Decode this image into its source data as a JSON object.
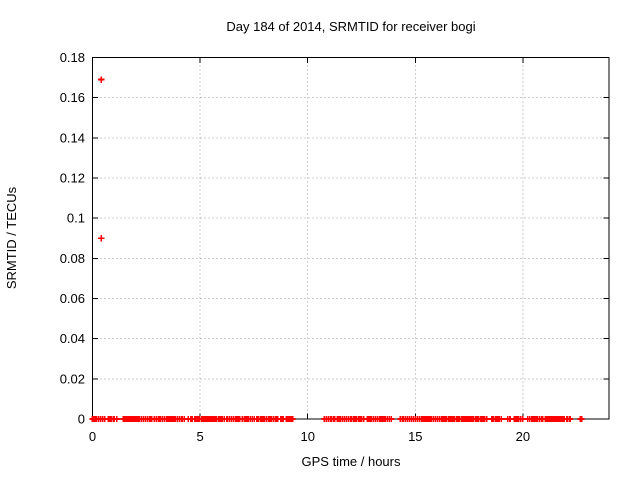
{
  "title": "Day 184 of 2014, SRMTID for receiver bogi",
  "chart_data": {
    "type": "scatter",
    "title": "Day 184 of 2014, SRMTID for receiver bogi",
    "xlabel": "GPS time / hours",
    "ylabel": "SRMTID / TECUs",
    "xlim": [
      0,
      24
    ],
    "ylim": [
      0,
      0.18
    ],
    "xticks": [
      0,
      5,
      10,
      15,
      20
    ],
    "xtick_labels": [
      "0",
      "5",
      "10",
      "15",
      "20"
    ],
    "yticks": [
      0,
      0.02,
      0.04,
      0.06,
      0.08,
      0.1,
      0.12,
      0.14,
      0.16,
      0.18
    ],
    "ytick_labels": [
      "0",
      "0.02",
      "0.04",
      "0.06",
      "0.08",
      "0.1",
      "0.12",
      "0.14",
      "0.16",
      "0.18"
    ],
    "grid": true,
    "grid_style": "dotted",
    "grid_color": "#9c9c9c",
    "border_color": "#000000",
    "marker": "plus",
    "marker_color": "#ff0000",
    "outlier_points": [
      {
        "x": 0.4,
        "y": 0.169
      },
      {
        "x": 0.4,
        "y": 0.09
      }
    ],
    "baseline_value": 0,
    "baseline_point_spacing_hours": 0.09,
    "baseline_segments": [
      [
        0.0,
        0.57
      ],
      [
        0.73,
        0.88
      ],
      [
        1.0,
        1.13
      ],
      [
        1.44,
        2.09
      ],
      [
        2.17,
        2.74
      ],
      [
        2.87,
        3.36
      ],
      [
        3.46,
        3.83
      ],
      [
        3.95,
        4.26
      ],
      [
        4.45,
        4.57
      ],
      [
        4.64,
        4.76
      ],
      [
        4.82,
        5.32
      ],
      [
        5.4,
        5.48
      ],
      [
        5.55,
        5.65
      ],
      [
        5.69,
        6.12
      ],
      [
        6.25,
        6.74
      ],
      [
        6.83,
        6.96
      ],
      [
        7.06,
        7.52
      ],
      [
        7.64,
        8.42
      ],
      [
        8.51,
        8.6
      ],
      [
        8.76,
        8.85
      ],
      [
        9.01,
        9.29
      ],
      [
        10.78,
        11.18
      ],
      [
        11.25,
        11.37
      ],
      [
        11.43,
        12.01
      ],
      [
        12.11,
        12.45
      ],
      [
        12.51,
        12.6
      ],
      [
        12.76,
        12.94
      ],
      [
        13.04,
        13.41
      ],
      [
        13.5,
        13.88
      ],
      [
        14.31,
        14.43
      ],
      [
        14.53,
        14.74
      ],
      [
        14.84,
        16.2
      ],
      [
        16.29,
        17.07
      ],
      [
        17.17,
        17.24
      ],
      [
        17.3,
        17.38
      ],
      [
        17.44,
        17.5
      ],
      [
        17.56,
        17.62
      ],
      [
        17.69,
        17.78
      ],
      [
        17.87,
        18.12
      ],
      [
        18.19,
        18.31
      ],
      [
        18.56,
        18.99
      ],
      [
        19.3,
        19.4
      ],
      [
        19.61,
        19.77
      ],
      [
        19.89,
        19.99
      ],
      [
        20.23,
        20.85
      ],
      [
        20.91,
        21.04
      ],
      [
        21.1,
        21.19
      ],
      [
        21.24,
        21.32
      ],
      [
        21.38,
        21.84
      ],
      [
        21.91,
        22.03
      ],
      [
        22.09,
        22.19
      ],
      [
        22.68,
        22.72
      ]
    ]
  }
}
